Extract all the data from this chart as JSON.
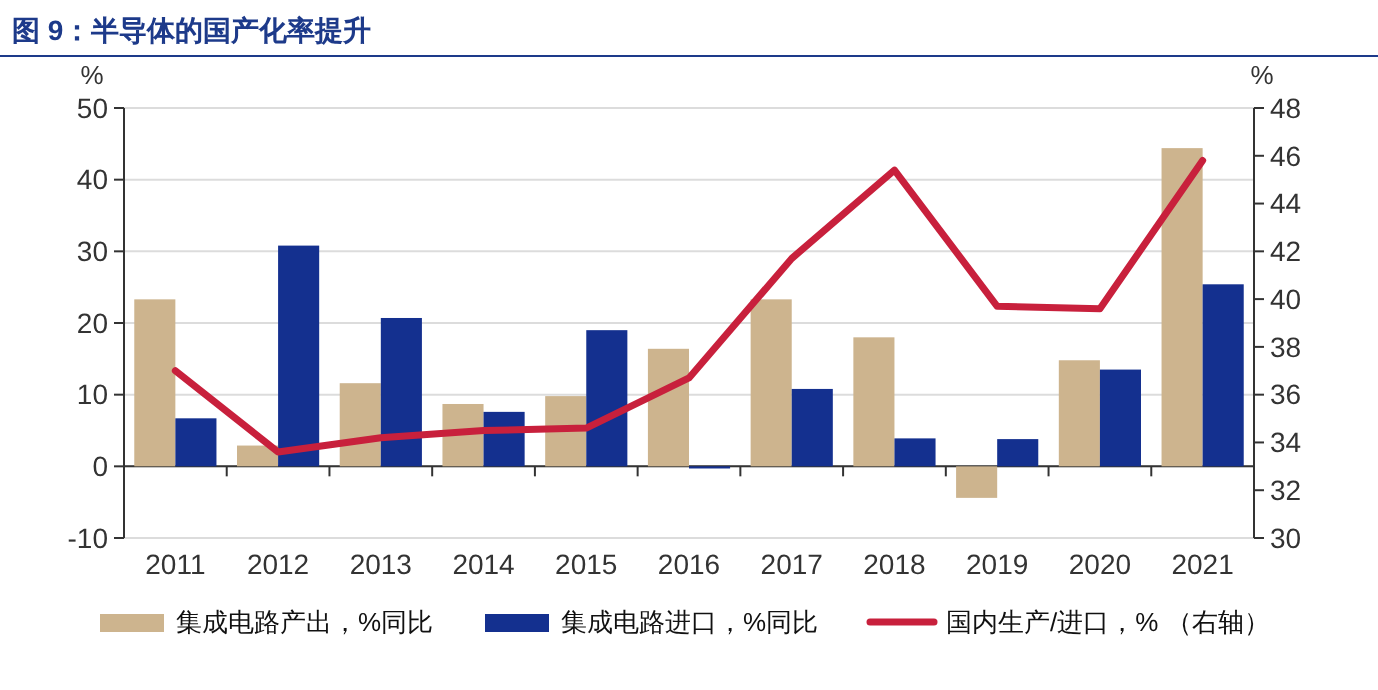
{
  "chart_data": {
    "type": "bar",
    "title": "图 9：半导体的国产化率提升",
    "ylabel": "%",
    "y2label": "%",
    "categories": [
      "2011",
      "2012",
      "2013",
      "2014",
      "2015",
      "2016",
      "2017",
      "2018",
      "2019",
      "2020",
      "2021"
    ],
    "series": [
      {
        "name": "集成电路产出，%同比",
        "color": "#cdb48e",
        "values": [
          23.3,
          2.9,
          11.6,
          8.7,
          9.8,
          16.4,
          23.3,
          18.0,
          -4.4,
          14.8,
          44.4
        ]
      },
      {
        "name": "集成电路进口，%同比",
        "color": "#14308f",
        "values": [
          6.7,
          30.8,
          20.7,
          7.6,
          19.0,
          -0.3,
          10.8,
          3.9,
          3.8,
          13.5,
          25.4
        ]
      },
      {
        "name": "国内生产/进口，% （右轴）",
        "type": "line",
        "axis": "y2",
        "color": "#c8203c",
        "values": [
          37.0,
          33.6,
          34.2,
          34.5,
          34.6,
          36.7,
          41.7,
          45.4,
          39.7,
          39.6,
          45.8
        ]
      }
    ],
    "ylim": [
      -10,
      50
    ],
    "yticks": [
      -10,
      0,
      10,
      20,
      30,
      40,
      50
    ],
    "y2lim": [
      30,
      48
    ],
    "y2ticks": [
      30,
      32,
      34,
      36,
      38,
      40,
      42,
      44,
      46,
      48
    ],
    "grid": "y",
    "legend": "bottom",
    "marker": "none",
    "line_style": "solid"
  }
}
